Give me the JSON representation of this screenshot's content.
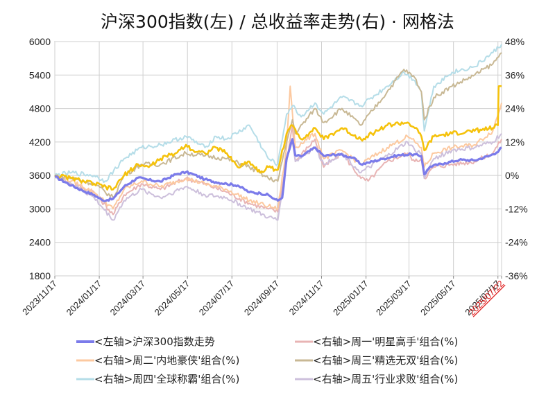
{
  "chart_data": {
    "type": "line",
    "title": "沪深300指数(左) / 总收益率走势(右) · 网格法",
    "grid": true,
    "legend_position": "bottom",
    "left_axis": {
      "range": [
        1800,
        6000
      ],
      "ticks": [
        1800,
        2400,
        3000,
        3600,
        4200,
        4800,
        5400,
        6000
      ]
    },
    "right_axis": {
      "range": [
        -36,
        48
      ],
      "ticks": [
        -36,
        -24,
        -12,
        0,
        12,
        24,
        36,
        48
      ],
      "tick_labels": [
        "-36%",
        "-24%",
        "-12%",
        "0%",
        "12%",
        "24%",
        "36%",
        "48%"
      ],
      "negative_color": "#22c022"
    },
    "x_ticks": [
      "2023/11/17",
      "2024/01/17",
      "2024/03/17",
      "2024/05/17",
      "2024/07/17",
      "2024/09/17",
      "2024/11/17",
      "2025/01/17",
      "2025/03/17",
      "2025/05/17",
      "2025/07/17",
      "2025/07/22"
    ],
    "last_tick_color": "#e02020",
    "series": [
      {
        "name": "<左轴>沪深300指数走势",
        "axis": "left",
        "color": "#7b7bea",
        "width": 3.2,
        "points": [
          [
            "2023/11/17",
            3580
          ],
          [
            "2023/12/10",
            3420
          ],
          [
            "2023/12/25",
            3330
          ],
          [
            "2024/01/10",
            3250
          ],
          [
            "2024/01/22",
            3150
          ],
          [
            "2024/02/05",
            3180
          ],
          [
            "2024/02/20",
            3400
          ],
          [
            "2024/03/10",
            3560
          ],
          [
            "2024/03/25",
            3520
          ],
          [
            "2024/04/10",
            3490
          ],
          [
            "2024/05/01",
            3620
          ],
          [
            "2024/05/15",
            3660
          ],
          [
            "2024/05/25",
            3620
          ],
          [
            "2024/06/10",
            3530
          ],
          [
            "2024/06/25",
            3480
          ],
          [
            "2024/07/10",
            3450
          ],
          [
            "2024/07/25",
            3420
          ],
          [
            "2024/08/10",
            3300
          ],
          [
            "2024/08/25",
            3280
          ],
          [
            "2024/09/05",
            3250
          ],
          [
            "2024/09/13",
            3180
          ],
          [
            "2024/09/18",
            3150
          ],
          [
            "2024/09/24",
            3200
          ],
          [
            "2024/09/30",
            3900
          ],
          [
            "2024/10/08",
            4250
          ],
          [
            "2024/10/12",
            3960
          ],
          [
            "2024/10/20",
            3940
          ],
          [
            "2024/11/08",
            4100
          ],
          [
            "2024/11/20",
            3950
          ],
          [
            "2024/12/10",
            3980
          ],
          [
            "2024/12/30",
            3920
          ],
          [
            "2025/01/10",
            3800
          ],
          [
            "2025/01/20",
            3830
          ],
          [
            "2025/02/10",
            3900
          ],
          [
            "2025/03/01",
            3960
          ],
          [
            "2025/03/20",
            3980
          ],
          [
            "2025/04/03",
            3950
          ],
          [
            "2025/04/07",
            3620
          ],
          [
            "2025/04/15",
            3760
          ],
          [
            "2025/05/05",
            3820
          ],
          [
            "2025/05/25",
            3880
          ],
          [
            "2025/06/15",
            3870
          ],
          [
            "2025/07/05",
            3950
          ],
          [
            "2025/07/15",
            4010
          ],
          [
            "2025/07/22",
            4100
          ]
        ]
      },
      {
        "name": "<右轴>周一'明星高手'组合(%)",
        "axis": "right",
        "color": "#e8b4b4",
        "width": 2,
        "points": [
          [
            "2023/11/17",
            0
          ],
          [
            "2023/12/10",
            -3
          ],
          [
            "2024/01/10",
            -6
          ],
          [
            "2024/02/05",
            -14
          ],
          [
            "2024/02/20",
            -7
          ],
          [
            "2024/03/15",
            -3
          ],
          [
            "2024/04/10",
            -5
          ],
          [
            "2024/05/15",
            -1
          ],
          [
            "2024/06/10",
            -3
          ],
          [
            "2024/07/10",
            -6
          ],
          [
            "2024/08/10",
            -10
          ],
          [
            "2024/09/05",
            -12
          ],
          [
            "2024/09/18",
            -13
          ],
          [
            "2024/09/30",
            5
          ],
          [
            "2024/10/08",
            18
          ],
          [
            "2024/10/12",
            5
          ],
          [
            "2024/11/08",
            13
          ],
          [
            "2024/11/20",
            3
          ],
          [
            "2024/12/15",
            8
          ],
          [
            "2025/01/10",
            -1
          ],
          [
            "2025/01/20",
            -2
          ],
          [
            "2025/02/15",
            5
          ],
          [
            "2025/03/15",
            8
          ],
          [
            "2025/03/25",
            5
          ],
          [
            "2025/04/03",
            6
          ],
          [
            "2025/04/07",
            -1
          ],
          [
            "2025/04/20",
            3
          ],
          [
            "2025/05/15",
            4
          ],
          [
            "2025/06/15",
            5
          ],
          [
            "2025/07/10",
            8
          ],
          [
            "2025/07/22",
            13
          ]
        ]
      },
      {
        "name": "<右轴>周二'内地豪侠'组合(%)",
        "axis": "right",
        "color": "#fcc9a0",
        "width": 2,
        "points": [
          [
            "2023/11/17",
            0
          ],
          [
            "2023/12/10",
            -2
          ],
          [
            "2024/01/10",
            -6
          ],
          [
            "2024/02/05",
            -12
          ],
          [
            "2024/02/20",
            -5
          ],
          [
            "2024/03/15",
            -2
          ],
          [
            "2024/04/10",
            -4
          ],
          [
            "2024/05/15",
            -1
          ],
          [
            "2024/06/10",
            -3
          ],
          [
            "2024/07/10",
            -5
          ],
          [
            "2024/08/10",
            -9
          ],
          [
            "2024/09/05",
            -11
          ],
          [
            "2024/09/18",
            -12
          ],
          [
            "2024/09/30",
            10
          ],
          [
            "2024/10/05",
            32
          ],
          [
            "2024/10/12",
            10
          ],
          [
            "2024/11/08",
            15
          ],
          [
            "2024/11/20",
            6
          ],
          [
            "2024/12/15",
            9
          ],
          [
            "2025/01/10",
            4
          ],
          [
            "2025/02/15",
            10
          ],
          [
            "2025/03/15",
            14
          ],
          [
            "2025/03/25",
            12
          ],
          [
            "2025/04/03",
            10
          ],
          [
            "2025/04/07",
            3
          ],
          [
            "2025/04/20",
            8
          ],
          [
            "2025/05/15",
            10
          ],
          [
            "2025/06/15",
            11
          ],
          [
            "2025/07/10",
            16
          ],
          [
            "2025/07/22",
            26
          ]
        ]
      },
      {
        "name": "<右轴>周三'精选无双'组合(%)",
        "axis": "right",
        "color": "#c8b894",
        "width": 2,
        "points": [
          [
            "2023/11/17",
            0
          ],
          [
            "2023/12/10",
            -1
          ],
          [
            "2024/01/10",
            -3
          ],
          [
            "2024/02/05",
            -8
          ],
          [
            "2024/02/20",
            0
          ],
          [
            "2024/03/15",
            4
          ],
          [
            "2024/04/10",
            4
          ],
          [
            "2024/05/15",
            8
          ],
          [
            "2024/06/10",
            7
          ],
          [
            "2024/07/10",
            6
          ],
          [
            "2024/08/10",
            3
          ],
          [
            "2024/09/05",
            -1
          ],
          [
            "2024/09/18",
            -2
          ],
          [
            "2024/09/30",
            12
          ],
          [
            "2024/10/08",
            20
          ],
          [
            "2024/10/12",
            15
          ],
          [
            "2024/11/08",
            24
          ],
          [
            "2024/11/20",
            19
          ],
          [
            "2024/12/15",
            24
          ],
          [
            "2025/01/10",
            18
          ],
          [
            "2025/02/15",
            30
          ],
          [
            "2025/03/10",
            38
          ],
          [
            "2025/03/25",
            35
          ],
          [
            "2025/04/03",
            30
          ],
          [
            "2025/04/07",
            20
          ],
          [
            "2025/04/20",
            28
          ],
          [
            "2025/05/15",
            32
          ],
          [
            "2025/06/15",
            36
          ],
          [
            "2025/07/10",
            40
          ],
          [
            "2025/07/22",
            44
          ]
        ]
      },
      {
        "name": "<右轴>周四'全球称霸'组合(%)",
        "axis": "right",
        "color": "#b5dde8",
        "width": 2,
        "points": [
          [
            "2023/11/17",
            0
          ],
          [
            "2023/12/10",
            1
          ],
          [
            "2024/01/10",
            0
          ],
          [
            "2024/01/25",
            -2
          ],
          [
            "2024/02/20",
            6
          ],
          [
            "2024/03/15",
            10
          ],
          [
            "2024/04/10",
            11
          ],
          [
            "2024/05/15",
            14
          ],
          [
            "2024/06/10",
            10
          ],
          [
            "2024/06/25",
            14
          ],
          [
            "2024/07/10",
            13
          ],
          [
            "2024/08/10",
            18
          ],
          [
            "2024/09/05",
            6
          ],
          [
            "2024/09/18",
            4
          ],
          [
            "2024/09/30",
            22
          ],
          [
            "2024/10/08",
            25
          ],
          [
            "2024/10/20",
            21
          ],
          [
            "2024/11/08",
            26
          ],
          [
            "2024/11/20",
            22
          ],
          [
            "2024/12/15",
            28
          ],
          [
            "2025/01/10",
            25
          ],
          [
            "2025/02/15",
            32
          ],
          [
            "2025/03/10",
            37
          ],
          [
            "2025/03/25",
            34
          ],
          [
            "2025/04/03",
            30
          ],
          [
            "2025/04/07",
            16
          ],
          [
            "2025/04/20",
            32
          ],
          [
            "2025/05/15",
            37
          ],
          [
            "2025/06/15",
            39
          ],
          [
            "2025/07/10",
            44
          ],
          [
            "2025/07/22",
            47
          ]
        ]
      },
      {
        "name": "<右轴>周五'行业求败'组合(%)",
        "axis": "right",
        "color": "#cdc0dc",
        "width": 2,
        "points": [
          [
            "2023/11/17",
            0
          ],
          [
            "2023/12/10",
            -3
          ],
          [
            "2024/01/10",
            -8
          ],
          [
            "2024/02/05",
            -16
          ],
          [
            "2024/02/20",
            -9
          ],
          [
            "2024/03/15",
            -5
          ],
          [
            "2024/04/10",
            -8
          ],
          [
            "2024/05/15",
            -4
          ],
          [
            "2024/06/10",
            -7
          ],
          [
            "2024/07/10",
            -8
          ],
          [
            "2024/08/10",
            -12
          ],
          [
            "2024/09/05",
            -15
          ],
          [
            "2024/09/18",
            -16
          ],
          [
            "2024/09/30",
            5
          ],
          [
            "2024/10/08",
            13
          ],
          [
            "2024/10/12",
            5
          ],
          [
            "2024/11/08",
            10
          ],
          [
            "2024/11/20",
            4
          ],
          [
            "2024/12/15",
            8
          ],
          [
            "2025/01/10",
            1
          ],
          [
            "2025/02/15",
            7
          ],
          [
            "2025/03/15",
            12
          ],
          [
            "2025/03/25",
            9
          ],
          [
            "2025/04/03",
            8
          ],
          [
            "2025/04/07",
            -1
          ],
          [
            "2025/04/20",
            6
          ],
          [
            "2025/05/15",
            9
          ],
          [
            "2025/06/15",
            10
          ],
          [
            "2025/07/10",
            12
          ],
          [
            "2025/07/22",
            15
          ]
        ]
      },
      {
        "name": "",
        "axis": "right",
        "color": "#f5c20c",
        "width": 2.6,
        "points": [
          [
            "2023/11/17",
            0
          ],
          [
            "2023/12/10",
            -1
          ],
          [
            "2024/01/10",
            -3
          ],
          [
            "2024/02/05",
            -5
          ],
          [
            "2024/02/20",
            0
          ],
          [
            "2024/03/10",
            4
          ],
          [
            "2024/03/25",
            3
          ],
          [
            "2024/04/10",
            6
          ],
          [
            "2024/05/01",
            8
          ],
          [
            "2024/05/15",
            11
          ],
          [
            "2024/05/25",
            9
          ],
          [
            "2024/06/10",
            8
          ],
          [
            "2024/06/25",
            10
          ],
          [
            "2024/07/10",
            8
          ],
          [
            "2024/07/25",
            3
          ],
          [
            "2024/08/10",
            5
          ],
          [
            "2024/08/25",
            1
          ],
          [
            "2024/09/05",
            3
          ],
          [
            "2024/09/18",
            2
          ],
          [
            "2024/09/30",
            15
          ],
          [
            "2024/10/08",
            18
          ],
          [
            "2024/10/20",
            13
          ],
          [
            "2024/11/08",
            17
          ],
          [
            "2024/11/20",
            13
          ],
          [
            "2024/12/15",
            17
          ],
          [
            "2025/01/10",
            13
          ],
          [
            "2025/01/25",
            15
          ],
          [
            "2025/02/15",
            18
          ],
          [
            "2025/03/15",
            19
          ],
          [
            "2025/03/25",
            17
          ],
          [
            "2025/04/03",
            14
          ],
          [
            "2025/04/07",
            9
          ],
          [
            "2025/04/20",
            14
          ],
          [
            "2025/05/15",
            15
          ],
          [
            "2025/06/15",
            16
          ],
          [
            "2025/07/10",
            17
          ],
          [
            "2025/07/17",
            18
          ],
          [
            "2025/07/18",
            32
          ],
          [
            "2025/07/22",
            32
          ]
        ]
      }
    ]
  },
  "legend": [
    {
      "label": "<左轴>沪深300指数走势",
      "color": "#7b7bea",
      "width": 4
    },
    {
      "label": "<右轴>周一'明星高手'组合(%)",
      "color": "#e8b4b4",
      "width": 3
    },
    {
      "label": "<右轴>周二'内地豪侠'组合(%)",
      "color": "#fcc9a0",
      "width": 3
    },
    {
      "label": "<右轴>周三'精选无双'组合(%)",
      "color": "#c8b894",
      "width": 3
    },
    {
      "label": "<右轴>周四'全球称霸'组合(%)",
      "color": "#b5dde8",
      "width": 3
    },
    {
      "label": "<右轴>周五'行业求败'组合(%)",
      "color": "#cdc0dc",
      "width": 3
    }
  ]
}
